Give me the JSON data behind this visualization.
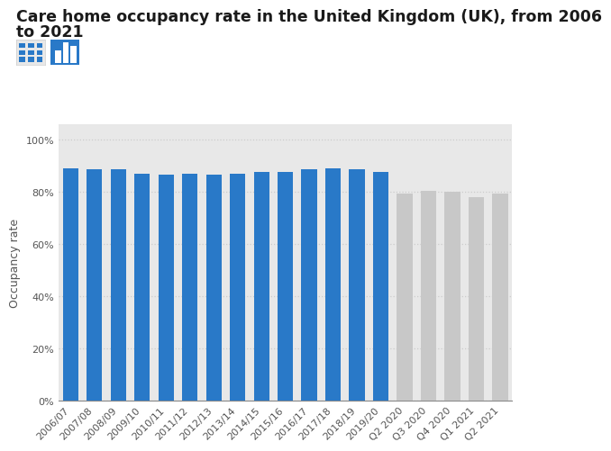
{
  "title_line1": "Care home occupancy rate in the United Kingdom (UK), from 2006",
  "title_line2": "to 2021",
  "ylabel": "Occupancy rate",
  "categories": [
    "2006/07",
    "2007/08",
    "2008/09",
    "2009/10",
    "2010/11",
    "2011/12",
    "2012/13",
    "2013/14",
    "2014/15",
    "2015/16",
    "2016/17",
    "2017/18",
    "2018/19",
    "2019/20",
    "Q2 2020",
    "Q3 2020",
    "Q4 2020",
    "Q1 2021",
    "Q2 2021"
  ],
  "values": [
    89,
    88.5,
    88.5,
    87,
    86.5,
    87,
    86.5,
    87,
    87.5,
    87.5,
    88.5,
    89,
    88.5,
    87.5,
    79.4,
    80.5,
    80,
    78,
    79.4
  ],
  "bar_colors": [
    "#2979c8",
    "#2979c8",
    "#2979c8",
    "#2979c8",
    "#2979c8",
    "#2979c8",
    "#2979c8",
    "#2979c8",
    "#2979c8",
    "#2979c8",
    "#2979c8",
    "#2979c8",
    "#2979c8",
    "#2979c8",
    "#c8c8c8",
    "#c8c8c8",
    "#c8c8c8",
    "#c8c8c8",
    "#c8c8c8"
  ],
  "yticks": [
    0,
    20,
    40,
    60,
    80,
    100
  ],
  "ytick_labels": [
    "0%",
    "20%",
    "40%",
    "60%",
    "80%",
    "100%"
  ],
  "ylim": [
    0,
    106
  ],
  "background_color": "#ffffff",
  "plot_bg_color": "#efefef",
  "col_bg_color": "#e8e8e8",
  "grid_color": "#cccccc",
  "title_fontsize": 12.5,
  "axis_label_fontsize": 9,
  "tick_fontsize": 8
}
